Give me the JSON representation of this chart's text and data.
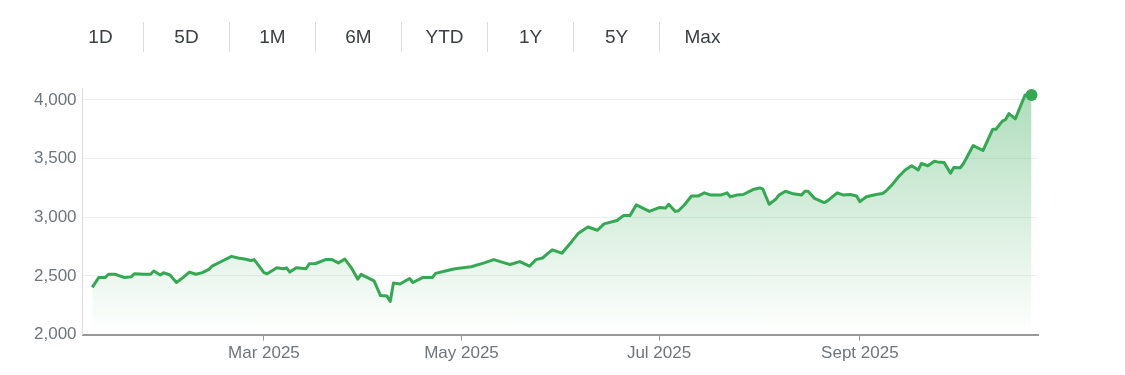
{
  "chart_data": {
    "type": "area",
    "annotations": [
      "1D",
      "5D",
      "1M",
      "6M",
      "YTD",
      "1Y",
      "5Y",
      "Max"
    ],
    "x": [
      "2025-01-07",
      "2025-01-09",
      "2025-01-11",
      "2025-01-12",
      "2025-01-14",
      "2025-01-17",
      "2025-01-19",
      "2025-01-20",
      "2025-01-23",
      "2025-01-25",
      "2025-01-26",
      "2025-01-28",
      "2025-01-29",
      "2025-01-31",
      "2025-02-02",
      "2025-02-04",
      "2025-02-06",
      "2025-02-08",
      "2025-02-10",
      "2025-02-12",
      "2025-02-13",
      "2025-02-16",
      "2025-02-19",
      "2025-02-21",
      "2025-02-23",
      "2025-02-25",
      "2025-02-26",
      "2025-03-01",
      "2025-03-02",
      "2025-03-05",
      "2025-03-07",
      "2025-03-08",
      "2025-03-09",
      "2025-03-11",
      "2025-03-14",
      "2025-03-15",
      "2025-03-17",
      "2025-03-20",
      "2025-03-22",
      "2025-03-24",
      "2025-03-26",
      "2025-03-28",
      "2025-03-30",
      "2025-03-31",
      "2025-04-02",
      "2025-04-04",
      "2025-04-06",
      "2025-04-08",
      "2025-04-09",
      "2025-04-10",
      "2025-04-12",
      "2025-04-15",
      "2025-04-16",
      "2025-04-19",
      "2025-04-22",
      "2025-04-23",
      "2025-04-26",
      "2025-04-29",
      "2025-05-04",
      "2025-05-08",
      "2025-05-11",
      "2025-05-13",
      "2025-05-16",
      "2025-05-19",
      "2025-05-22",
      "2025-05-24",
      "2025-05-26",
      "2025-05-29",
      "2025-06-01",
      "2025-06-04",
      "2025-06-06",
      "2025-06-09",
      "2025-06-12",
      "2025-06-14",
      "2025-06-18",
      "2025-06-20",
      "2025-06-22",
      "2025-06-24",
      "2025-06-26",
      "2025-06-28",
      "2025-07-01",
      "2025-07-03",
      "2025-07-04",
      "2025-07-06",
      "2025-07-07",
      "2025-07-09",
      "2025-07-11",
      "2025-07-13",
      "2025-07-15",
      "2025-07-17",
      "2025-07-20",
      "2025-07-22",
      "2025-07-23",
      "2025-07-25",
      "2025-07-27",
      "2025-07-30",
      "2025-08-01",
      "2025-08-02",
      "2025-08-04",
      "2025-08-06",
      "2025-08-07",
      "2025-08-09",
      "2025-08-11",
      "2025-08-14",
      "2025-08-15",
      "2025-08-16",
      "2025-08-18",
      "2025-08-21",
      "2025-08-22",
      "2025-08-25",
      "2025-08-27",
      "2025-08-29",
      "2025-08-31",
      "2025-09-01",
      "2025-09-03",
      "2025-09-06",
      "2025-09-08",
      "2025-09-09",
      "2025-09-11",
      "2025-09-13",
      "2025-09-15",
      "2025-09-17",
      "2025-09-19",
      "2025-09-20",
      "2025-09-22",
      "2025-09-24",
      "2025-09-25",
      "2025-09-27",
      "2025-09-29",
      "2025-09-30",
      "2025-10-02",
      "2025-10-03",
      "2025-10-06",
      "2025-10-09",
      "2025-10-12",
      "2025-10-13",
      "2025-10-15",
      "2025-10-16",
      "2025-10-17",
      "2025-10-19",
      "2025-10-22",
      "2025-10-24"
    ],
    "series": [
      {
        "color": "#34a853",
        "values": [
          2403,
          2486,
          2486,
          2514,
          2514,
          2486,
          2492,
          2519,
          2514,
          2514,
          2542,
          2508,
          2528,
          2508,
          2444,
          2486,
          2533,
          2514,
          2528,
          2556,
          2583,
          2625,
          2667,
          2653,
          2644,
          2631,
          2639,
          2528,
          2519,
          2569,
          2561,
          2569,
          2533,
          2569,
          2561,
          2603,
          2606,
          2639,
          2639,
          2611,
          2644,
          2569,
          2472,
          2514,
          2486,
          2458,
          2333,
          2328,
          2283,
          2439,
          2431,
          2478,
          2444,
          2486,
          2486,
          2522,
          2542,
          2561,
          2578,
          2611,
          2639,
          2622,
          2597,
          2622,
          2583,
          2639,
          2653,
          2722,
          2694,
          2792,
          2861,
          2917,
          2889,
          2944,
          2972,
          3014,
          3014,
          3106,
          3078,
          3050,
          3083,
          3078,
          3111,
          3050,
          3056,
          3111,
          3181,
          3181,
          3208,
          3189,
          3189,
          3208,
          3175,
          3189,
          3194,
          3236,
          3250,
          3242,
          3111,
          3153,
          3189,
          3222,
          3203,
          3189,
          3222,
          3222,
          3161,
          3125,
          3139,
          3208,
          3189,
          3194,
          3181,
          3133,
          3175,
          3194,
          3203,
          3222,
          3278,
          3347,
          3403,
          3439,
          3403,
          3458,
          3439,
          3478,
          3472,
          3467,
          3375,
          3425,
          3422,
          3458,
          3611,
          3569,
          3750,
          3750,
          3819,
          3833,
          3883,
          3839,
          4042,
          4042
        ]
      }
    ],
    "xlim": [
      "2025-01-04",
      "2025-10-26"
    ],
    "xticks": [
      {
        "value": "2025-03-01",
        "label": "Mar 2025"
      },
      {
        "value": "2025-05-01",
        "label": "May 2025"
      },
      {
        "value": "2025-07-01",
        "label": "Jul 2025"
      },
      {
        "value": "2025-09-01",
        "label": "Sept 2025"
      }
    ],
    "ylim": [
      2000,
      4100
    ],
    "yticks": [
      {
        "value": 2000,
        "label": "2,000"
      },
      {
        "value": 2500,
        "label": "2,500"
      },
      {
        "value": 3000,
        "label": "3,000"
      },
      {
        "value": 3500,
        "label": "3,500"
      },
      {
        "value": 4000,
        "label": "4,000"
      }
    ],
    "grid": "y",
    "legend": false
  }
}
